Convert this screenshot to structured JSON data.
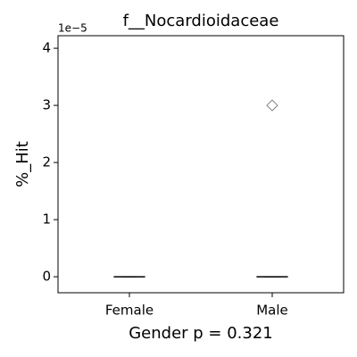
{
  "chart_data": {
    "type": "box",
    "title": "f__Nocardioidaceae",
    "y_label": "%_Hit",
    "x_label": "Gender p = 0.321",
    "y_offset_text": "1e−5",
    "categories": [
      "Female",
      "Male"
    ],
    "q1": [
      0,
      0
    ],
    "median": [
      0,
      0
    ],
    "q3": [
      0,
      0
    ],
    "whislo": [
      0,
      0
    ],
    "whishi": [
      0,
      0
    ],
    "fliers": [
      [],
      [
        3
      ]
    ],
    "box_color": "#000000",
    "flier_color": "#7f7f7f",
    "ylim": [
      -0.28,
      4.22
    ],
    "yticks": [
      0,
      1,
      2,
      3,
      4
    ],
    "grid": false
  }
}
